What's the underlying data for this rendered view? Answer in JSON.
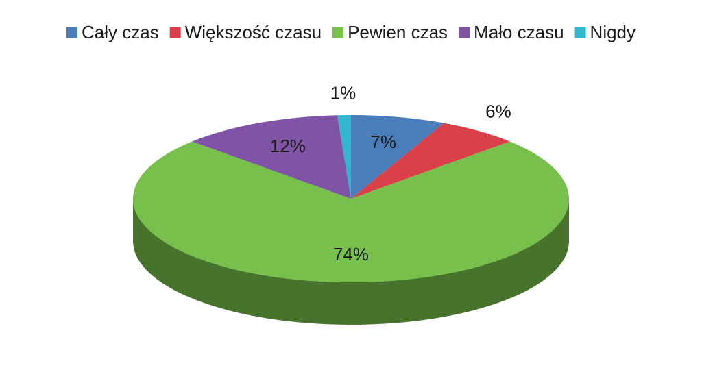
{
  "chart_data": {
    "type": "pie",
    "three_d": true,
    "categories": [
      "Cały czas",
      "Większość czasu",
      "Pewien czas",
      "Mało czasu",
      "Nigdy"
    ],
    "values": [
      7,
      6,
      74,
      12,
      1
    ],
    "value_labels": [
      "7%",
      "6%",
      "74%",
      "12%",
      "1%"
    ],
    "colors": [
      "#4a7ebb",
      "#d9404a",
      "#77c04b",
      "#7f54a6",
      "#31b6cf"
    ],
    "legend": "top"
  }
}
